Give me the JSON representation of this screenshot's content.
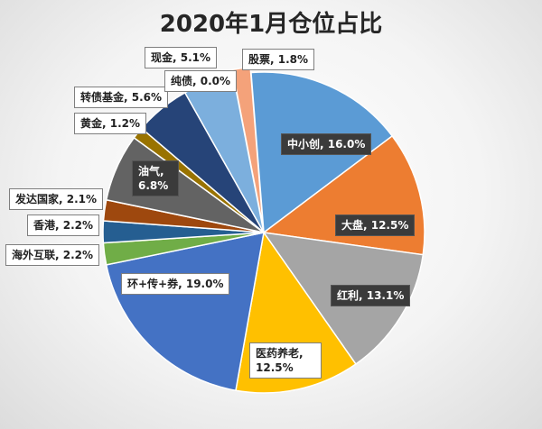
{
  "chart_data": {
    "type": "pie",
    "title": "2020年1月仓位占比",
    "slices": [
      {
        "label": "股票",
        "value": 1.8,
        "display": "股票, 1.8%",
        "color": "#F4A27A"
      },
      {
        "label": "中小创",
        "value": 16.0,
        "display": "中小创, 16.0%",
        "color": "#5B9BD5"
      },
      {
        "label": "大盘",
        "value": 12.5,
        "display": "大盘, 12.5%",
        "color": "#ED7D31"
      },
      {
        "label": "红利",
        "value": 13.1,
        "display": "红利, 13.1%",
        "color": "#A5A5A5"
      },
      {
        "label": "医药养老",
        "value": 12.5,
        "display": "医药养老, 12.5%",
        "color": "#FFC000"
      },
      {
        "label": "环+传+券",
        "value": 19.0,
        "display": "环+传+券, 19.0%",
        "color": "#4472C4"
      },
      {
        "label": "海外互联",
        "value": 2.2,
        "display": "海外互联, 2.2%",
        "color": "#70AD47"
      },
      {
        "label": "香港",
        "value": 2.2,
        "display": "香港, 2.2%",
        "color": "#255E91"
      },
      {
        "label": "发达国家",
        "value": 2.1,
        "display": "发达国家, 2.1%",
        "color": "#9E480E"
      },
      {
        "label": "油气",
        "value": 6.8,
        "display": "油气, 6.8%",
        "color": "#636363"
      },
      {
        "label": "黄金",
        "value": 1.2,
        "display": "黄金, 1.2%",
        "color": "#997300"
      },
      {
        "label": "转债基金",
        "value": 5.6,
        "display": "转债基金, 5.6%",
        "color": "#264478"
      },
      {
        "label": "纯债",
        "value": 0.0,
        "display": "纯债, 0.0%",
        "color": "#43682B"
      },
      {
        "label": "现金",
        "value": 5.1,
        "display": "现金, 5.1%",
        "color": "#7CAFDD"
      }
    ]
  }
}
